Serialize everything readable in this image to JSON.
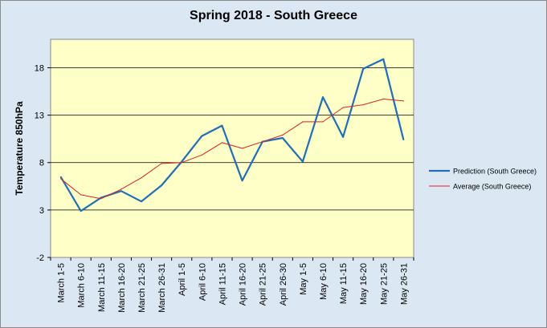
{
  "chart_data": {
    "type": "line",
    "title": "Spring 2018 - South Greece",
    "xlabel": "",
    "ylabel": "Temperature 850hPa",
    "categories": [
      "March 1-5",
      "March 6-10",
      "March 11-15",
      "March 16-20",
      "March 21-25",
      "March 26-31",
      "April 1-5",
      "April 6-10",
      "April 11-15",
      "April 16-20",
      "April 21-25",
      "April 26-30",
      "May 1-5",
      "May 6-10",
      "May 11-15",
      "May 16-20",
      "May 21-25",
      "May 26-31"
    ],
    "ylim": [
      -2,
      21
    ],
    "yticks": [
      -2,
      3,
      8,
      13,
      18
    ],
    "grid": true,
    "legend_position": "right",
    "series": [
      {
        "name": "Prediction (South Greece)",
        "color": "#1f6fb8",
        "values": [
          6.5,
          2.9,
          4.3,
          5.0,
          3.9,
          5.6,
          8.1,
          10.8,
          11.9,
          6.1,
          10.2,
          10.6,
          8.1,
          14.9,
          10.7,
          17.9,
          18.9,
          10.4
        ]
      },
      {
        "name": "Average (South Greece)",
        "color": "#e02020",
        "values": [
          6.3,
          4.6,
          4.2,
          5.2,
          6.4,
          7.9,
          8.0,
          8.8,
          10.1,
          9.5,
          10.2,
          10.9,
          12.3,
          12.3,
          13.8,
          14.1,
          14.7,
          14.5
        ]
      }
    ]
  }
}
